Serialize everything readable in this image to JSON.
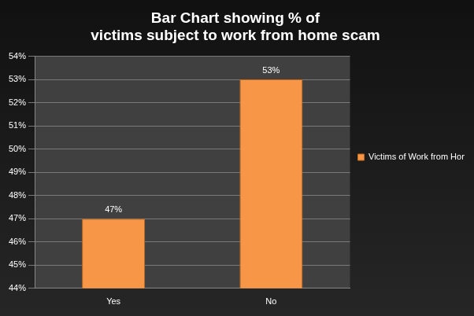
{
  "chart_data": {
    "type": "bar",
    "title": "Bar Chart showing % of victims subject to work from home scam",
    "categories": [
      "Yes",
      "No"
    ],
    "series": [
      {
        "name": "Victims of Work from Home Scam",
        "color": "#f79646",
        "values": [
          47,
          53
        ],
        "value_labels": [
          "47%",
          "53%"
        ]
      }
    ],
    "ylim": [
      44,
      54
    ],
    "yticks": [
      {
        "value": 44,
        "label": "44%"
      },
      {
        "value": 45,
        "label": "45%"
      },
      {
        "value": 46,
        "label": "46%"
      },
      {
        "value": 47,
        "label": "47%"
      },
      {
        "value": 48,
        "label": "48%"
      },
      {
        "value": 49,
        "label": "49%"
      },
      {
        "value": 50,
        "label": "50%"
      },
      {
        "value": 51,
        "label": "51%"
      },
      {
        "value": 52,
        "label": "52%"
      },
      {
        "value": 53,
        "label": "53%"
      },
      {
        "value": 54,
        "label": "54%"
      }
    ],
    "grid": true,
    "legend": "right",
    "data_labels": true
  }
}
